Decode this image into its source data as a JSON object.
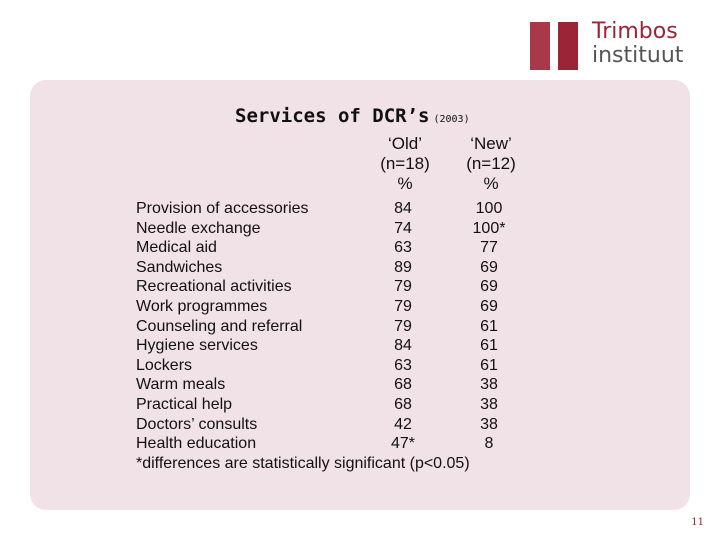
{
  "logo": {
    "line1": "Trimbos",
    "line2": "instituut"
  },
  "title": {
    "main": "Services of DCR’s",
    "year": "(2003)"
  },
  "columns": {
    "old": {
      "label": "‘Old’",
      "n": "(n=18)",
      "unit": "%"
    },
    "new": {
      "label": "‘New’",
      "n": "(n=12)",
      "unit": "%"
    }
  },
  "rows": [
    {
      "service": "Provision of accessories",
      "old": "84",
      "new": "100"
    },
    {
      "service": "Needle exchange",
      "old": "74",
      "new": "100*"
    },
    {
      "service": "Medical aid",
      "old": "63",
      "new": "77"
    },
    {
      "service": "Sandwiches",
      "old": "89",
      "new": "69"
    },
    {
      "service": "Recreational activities",
      "old": "79",
      "new": "69"
    },
    {
      "service": "Work programmes",
      "old": "79",
      "new": "69"
    },
    {
      "service": "Counseling and referral",
      "old": "79",
      "new": "61"
    },
    {
      "service": "Hygiene services",
      "old": "84",
      "new": "61"
    },
    {
      "service": "Lockers",
      "old": "63",
      "new": "61"
    },
    {
      "service": "Warm meals",
      "old": "68",
      "new": "38"
    },
    {
      "service": "Practical help",
      "old": "68",
      "new": "38"
    },
    {
      "service": "Doctors’ consults",
      "old": "42",
      "new": "38"
    },
    {
      "service": "Health education",
      "old": "47*",
      "new": "8"
    }
  ],
  "footnote": "*differences are statistically significant (p<0.05)",
  "page_number": "11",
  "colors": {
    "brand": "#9b2437",
    "panel": "#f0e2e6"
  }
}
